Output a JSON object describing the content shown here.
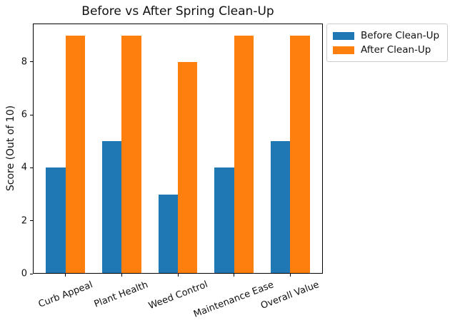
{
  "chart_data": {
    "type": "bar",
    "title": "Before vs After Spring Clean-Up",
    "ylabel": "Score (Out of 10)",
    "xlabel": "",
    "categories": [
      "Curb Appeal",
      "Plant Health",
      "Weed Control",
      "Maintenance Ease",
      "Overall Value"
    ],
    "series": [
      {
        "name": "Before Clean-Up",
        "color": "#1f77b4",
        "values": [
          4,
          5,
          3,
          4,
          5
        ]
      },
      {
        "name": "After Clean-Up",
        "color": "#ff7f0e",
        "values": [
          9,
          9,
          8,
          9,
          9
        ]
      }
    ],
    "ylim": [
      0,
      9.45
    ],
    "yticks": [
      0,
      2,
      4,
      6,
      8
    ],
    "xtick_rotation_deg": 21,
    "grid": false,
    "legend_position": "upper right, outside plot area",
    "bar_group_width": 0.7
  }
}
